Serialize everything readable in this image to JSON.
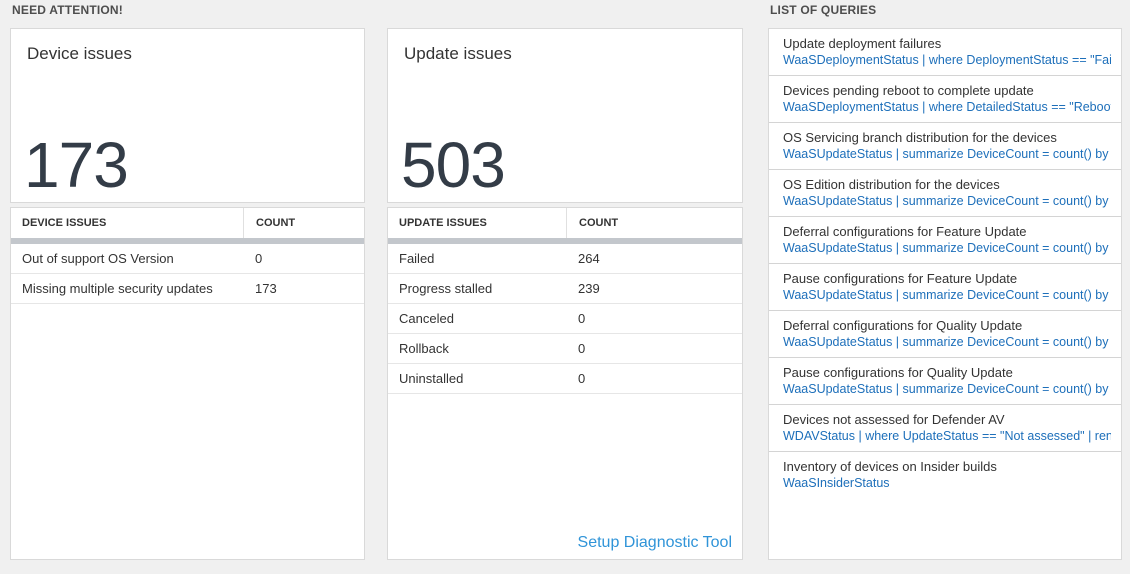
{
  "headers": {
    "need_attention": "NEED ATTENTION!",
    "list_of_queries": "LIST OF QUERIES"
  },
  "device_panel": {
    "title": "Device issues",
    "big_number": "173",
    "table": {
      "headers": [
        "DEVICE ISSUES",
        "COUNT"
      ],
      "rows": [
        {
          "label": "Out of support OS Version",
          "count": "0"
        },
        {
          "label": "Missing multiple security updates",
          "count": "173"
        }
      ]
    }
  },
  "update_panel": {
    "title": "Update issues",
    "big_number": "503",
    "table": {
      "headers": [
        "UPDATE ISSUES",
        "COUNT"
      ],
      "rows": [
        {
          "label": "Failed",
          "count": "264"
        },
        {
          "label": "Progress stalled",
          "count": "239"
        },
        {
          "label": "Canceled",
          "count": "0"
        },
        {
          "label": "Rollback",
          "count": "0"
        },
        {
          "label": "Uninstalled",
          "count": "0"
        }
      ]
    },
    "footer_link": "Setup Diagnostic Tool"
  },
  "queries": {
    "items": [
      {
        "title": "Update deployment failures",
        "query": "WaaSDeploymentStatus | where DeploymentStatus == \"Failed\" |..."
      },
      {
        "title": "Devices pending reboot to complete update",
        "query": "WaaSDeploymentStatus | where DetailedStatus == \"Reboot pend..."
      },
      {
        "title": "OS Servicing branch distribution for the devices",
        "query": "WaaSUpdateStatus | summarize DeviceCount = count() by OSSer..."
      },
      {
        "title": "OS Edition distribution for the devices",
        "query": "WaaSUpdateStatus | summarize DeviceCount = count() by OSEdit..."
      },
      {
        "title": "Deferral configurations for Feature Update",
        "query": "WaaSUpdateStatus | summarize DeviceCount = count() by Featur..."
      },
      {
        "title": "Pause configurations for Feature Update",
        "query": "WaaSUpdateStatus | summarize DeviceCount = count() by Featur..."
      },
      {
        "title": "Deferral configurations for Quality Update",
        "query": "WaaSUpdateStatus | summarize DeviceCount = count() by Qualit..."
      },
      {
        "title": "Pause configurations for Quality Update",
        "query": "WaaSUpdateStatus | summarize DeviceCount = count() by Qualit..."
      },
      {
        "title": "Devices not assessed for Defender AV",
        "query": "WDAVStatus | where UpdateStatus == \"Not assessed\" | render ta..."
      },
      {
        "title": "Inventory of devices on Insider builds",
        "query": "WaaSInsiderStatus"
      }
    ]
  },
  "colors": {
    "page_background": "#f0f0f0",
    "panel_background": "#ffffff",
    "panel_border": "#d9d9d9",
    "big_number_text": "#333c47",
    "query_link_blue": "#1d6fba",
    "setup_link_blue": "#3094d8",
    "table_header_bar": "#c3c7cc"
  }
}
